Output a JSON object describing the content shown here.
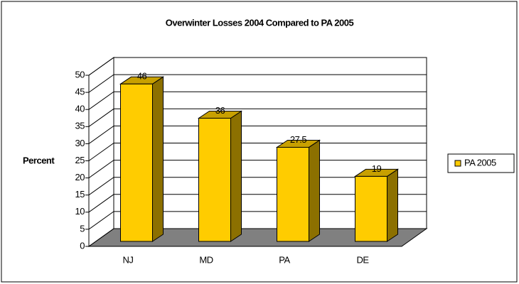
{
  "chart_data": {
    "type": "bar",
    "title": "Overwinter Losses 2004 Compared to PA 2005",
    "y_label": "Percent",
    "categories": [
      "NJ",
      "MD",
      "PA",
      "DE"
    ],
    "series": [
      {
        "name": "PA 2005",
        "color": "#ffcc00",
        "values": [
          46,
          36,
          27.5,
          19
        ]
      }
    ],
    "ylim": [
      0,
      50
    ],
    "yticks": [
      0,
      5,
      10,
      15,
      20,
      25,
      30,
      35,
      40,
      45,
      50
    ],
    "grid": true,
    "legend": "right"
  }
}
